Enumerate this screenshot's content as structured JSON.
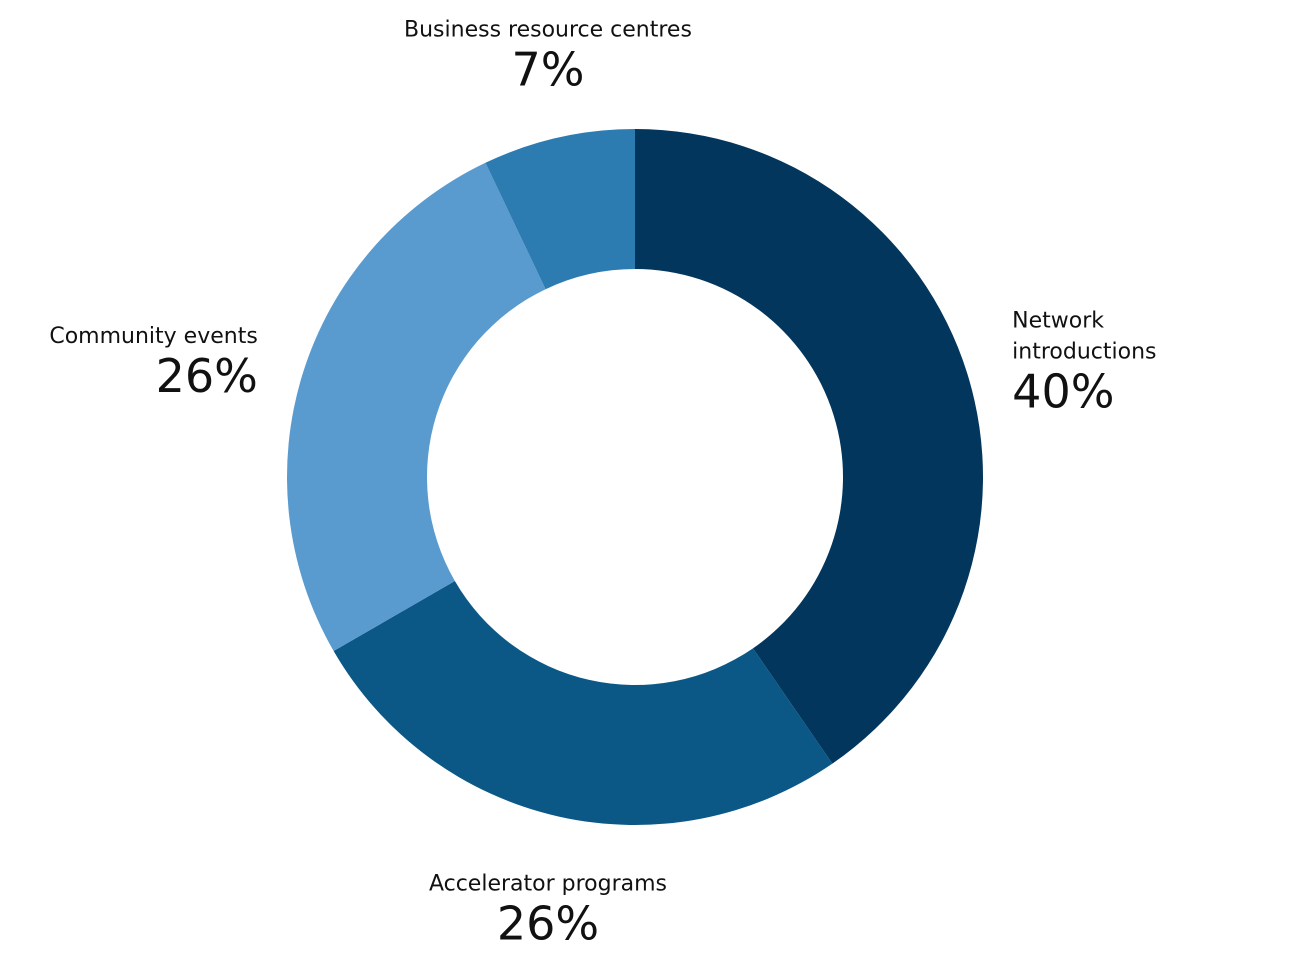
{
  "chart_data": {
    "type": "pie",
    "donut": true,
    "title": "",
    "slices": [
      {
        "label_lines": [
          "Network",
          "introductions"
        ],
        "value": 40,
        "value_label": "40%",
        "color": "#02365D"
      },
      {
        "label_lines": [
          "Accelerator programs"
        ],
        "value": 26,
        "value_label": "26%",
        "color": "#0B5886"
      },
      {
        "label_lines": [
          "Community events"
        ],
        "value": 26,
        "value_label": "26%",
        "color": "#5A9BCF"
      },
      {
        "label_lines": [
          "Business resource centres"
        ],
        "value": 7,
        "value_label": "7%",
        "color": "#2C7CB1"
      }
    ],
    "start": "12 o'clock",
    "direction": "clockwise",
    "legend": "none"
  }
}
